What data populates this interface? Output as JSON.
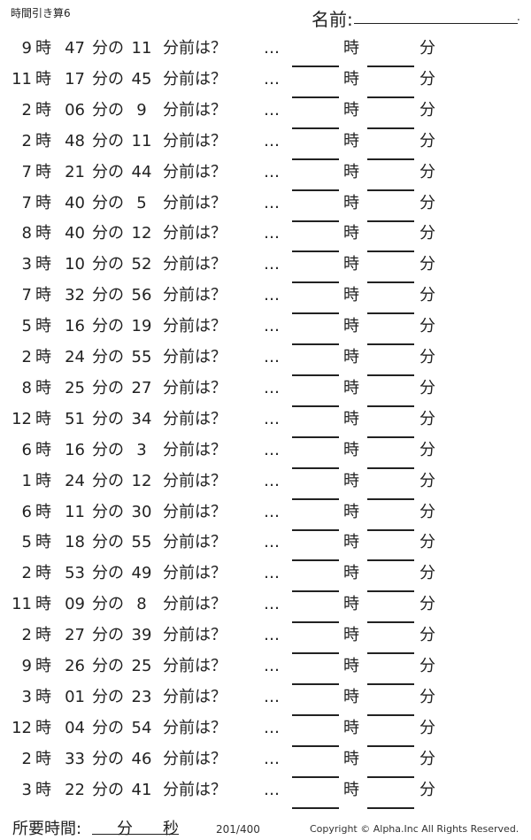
{
  "header": {
    "title": "時間引き算6",
    "name_label": "名前:",
    "name_end": "."
  },
  "labels": {
    "hour": "時",
    "min_no": "分の",
    "min_before": "分前は？",
    "dots": "…",
    "ans_hour": "時",
    "ans_min": "分"
  },
  "problems": [
    {
      "h": "9",
      "m": "47",
      "s": "11"
    },
    {
      "h": "11",
      "m": "17",
      "s": "45"
    },
    {
      "h": "2",
      "m": "06",
      "s": "9"
    },
    {
      "h": "2",
      "m": "48",
      "s": "11"
    },
    {
      "h": "7",
      "m": "21",
      "s": "44"
    },
    {
      "h": "7",
      "m": "40",
      "s": "5"
    },
    {
      "h": "8",
      "m": "40",
      "s": "12"
    },
    {
      "h": "3",
      "m": "10",
      "s": "52"
    },
    {
      "h": "7",
      "m": "32",
      "s": "56"
    },
    {
      "h": "5",
      "m": "16",
      "s": "19"
    },
    {
      "h": "2",
      "m": "24",
      "s": "55"
    },
    {
      "h": "8",
      "m": "25",
      "s": "27"
    },
    {
      "h": "12",
      "m": "51",
      "s": "34"
    },
    {
      "h": "6",
      "m": "16",
      "s": "3"
    },
    {
      "h": "1",
      "m": "24",
      "s": "12"
    },
    {
      "h": "6",
      "m": "11",
      "s": "30"
    },
    {
      "h": "5",
      "m": "18",
      "s": "55"
    },
    {
      "h": "2",
      "m": "53",
      "s": "49"
    },
    {
      "h": "11",
      "m": "09",
      "s": "8"
    },
    {
      "h": "2",
      "m": "27",
      "s": "39"
    },
    {
      "h": "9",
      "m": "26",
      "s": "25"
    },
    {
      "h": "3",
      "m": "01",
      "s": "23"
    },
    {
      "h": "12",
      "m": "04",
      "s": "54"
    },
    {
      "h": "2",
      "m": "33",
      "s": "46"
    },
    {
      "h": "3",
      "m": "22",
      "s": "41"
    }
  ],
  "footer": {
    "time_label": "所要時間:",
    "min": "分",
    "sec": "秒",
    "page": "201/400",
    "copyright": "Copyright ©  Alpha.Inc All Rights Reserved."
  }
}
